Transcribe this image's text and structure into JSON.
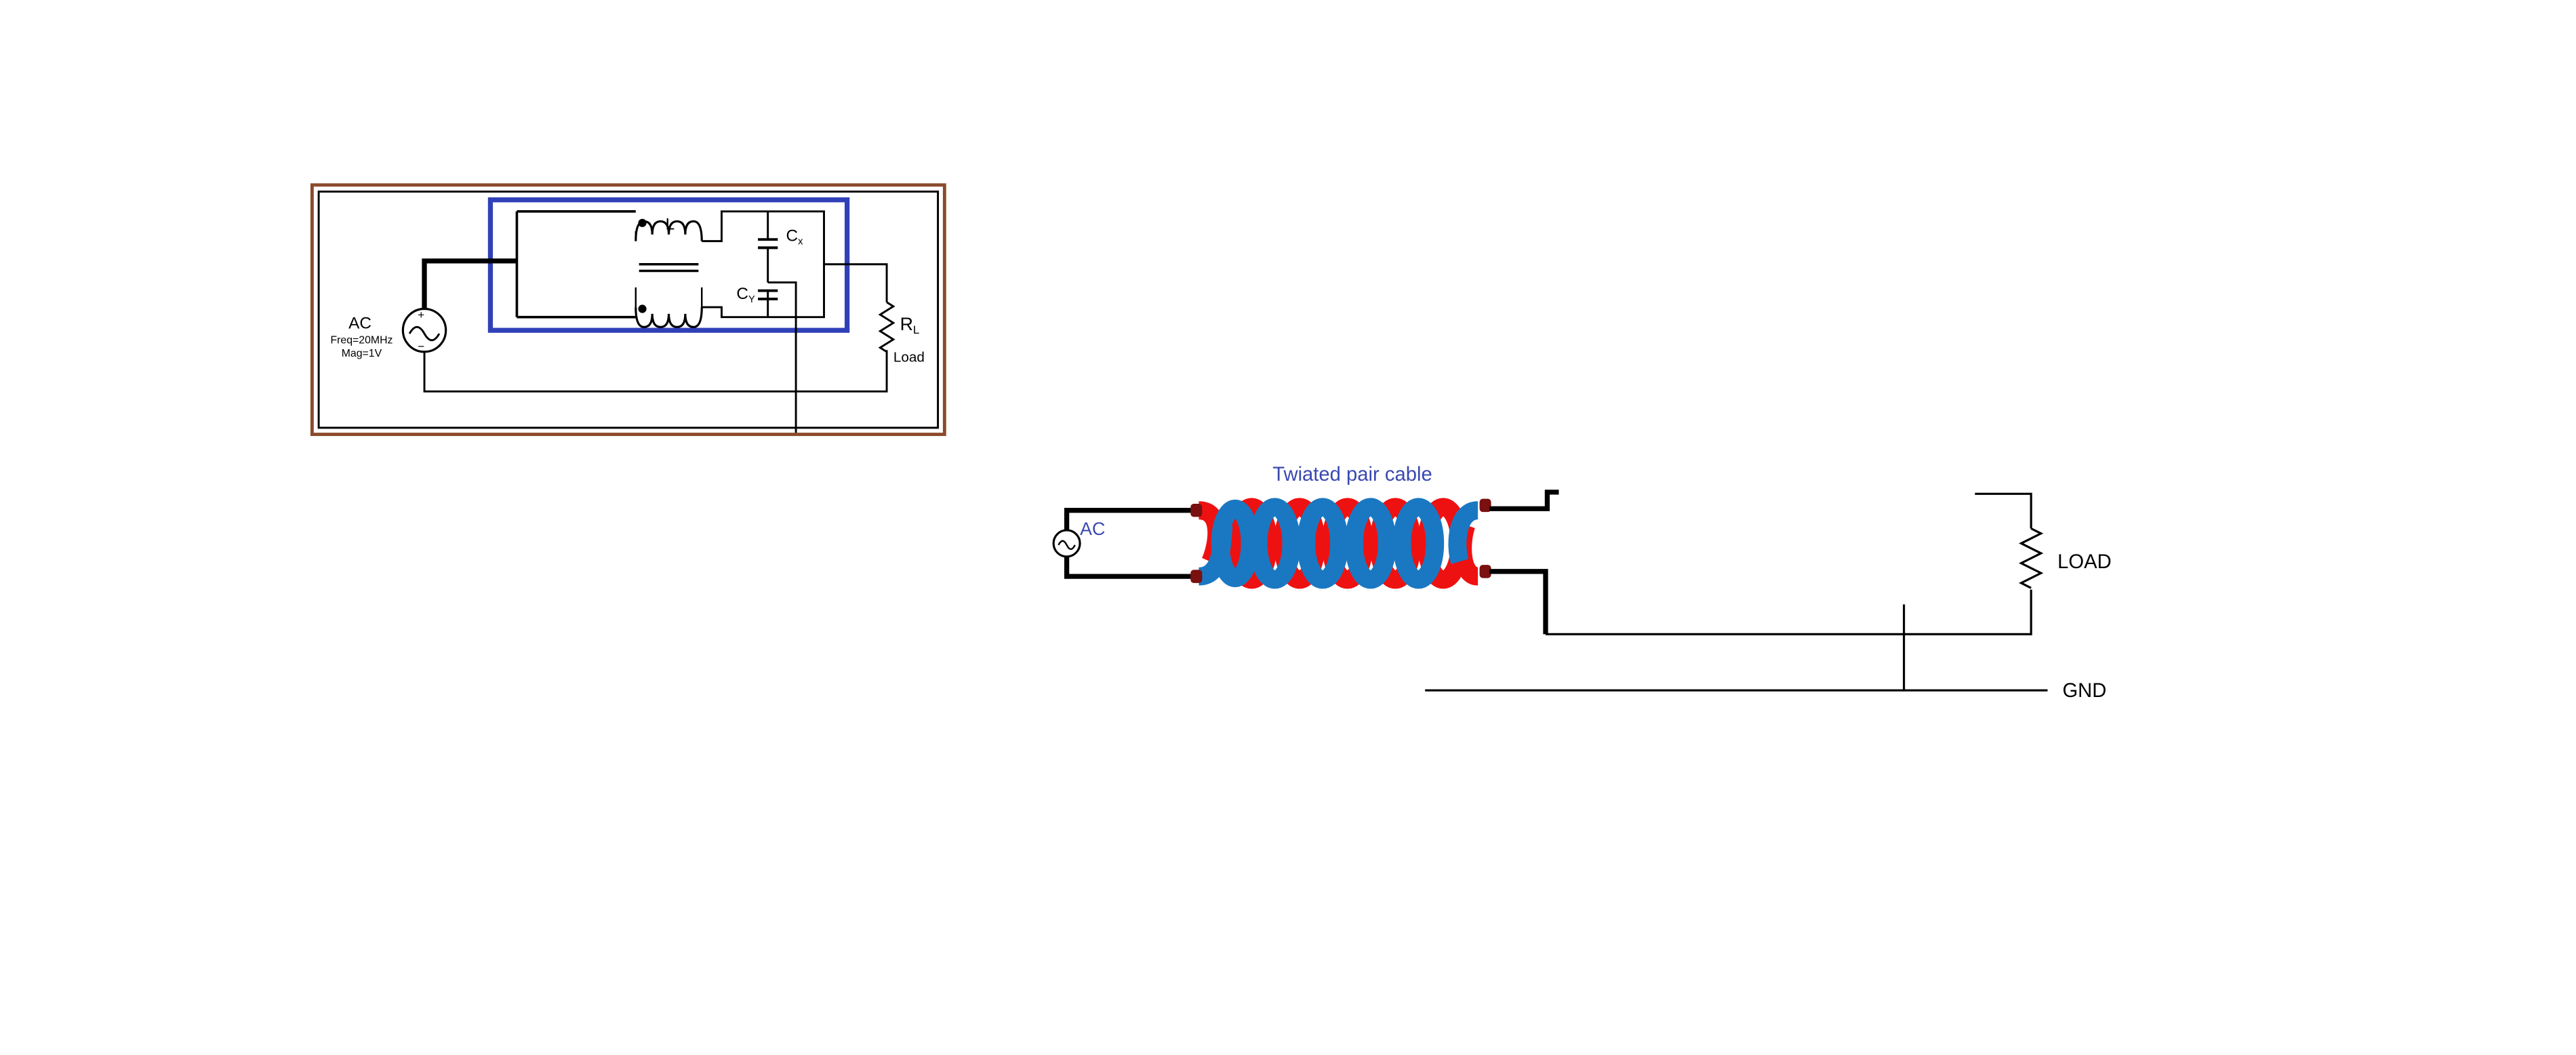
{
  "schematic1": {
    "source": {
      "name": "AC",
      "freq": "Freq=20MHz",
      "mag": "Mag=1V"
    },
    "inductor": {
      "label": "L"
    },
    "cap_x": {
      "label_main": "C",
      "label_sub": "x"
    },
    "cap_y": {
      "label_main": "C",
      "label_sub": "Y"
    },
    "load": {
      "label_main": "R",
      "label_sub": "L",
      "caption": "Load"
    }
  },
  "schematic2": {
    "cable_label": "Twiated pair cable",
    "source_label": "AC",
    "load_label": "LOAD",
    "gnd_label": "GND"
  },
  "colors": {
    "filter_box": "#3040b8",
    "frame_brown": "#8b4a2b",
    "wire": "#000000",
    "cable_red": "#ee1111",
    "cable_blue": "#1a78c2",
    "cable_text": "#3a48b0",
    "terminal": "#7a1010"
  }
}
